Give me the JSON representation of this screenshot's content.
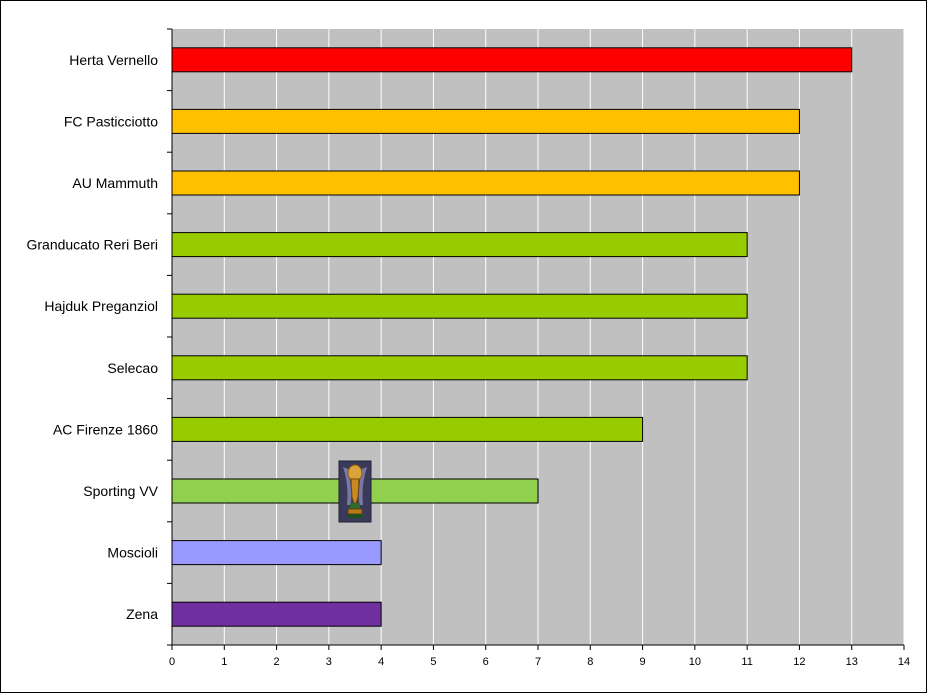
{
  "chart_data": {
    "type": "bar",
    "orientation": "horizontal",
    "categories": [
      "Herta Vernello",
      "FC Pasticciotto",
      "AU Mammuth",
      "Granducato Reri Beri",
      "Hajduk Preganziol",
      "Selecao",
      "AC Firenze 1860",
      "Sporting VV",
      "Moscioli",
      "Zena"
    ],
    "values": [
      13,
      12,
      12,
      11,
      11,
      11,
      9,
      7,
      4,
      4
    ],
    "bar_colors": [
      "#ff0000",
      "#ffc000",
      "#ffc000",
      "#99cc00",
      "#99cc00",
      "#99cc00",
      "#99cc00",
      "#92d050",
      "#9999ff",
      "#7030a0"
    ],
    "xlim": [
      0,
      14
    ],
    "x_ticks": [
      0,
      1,
      2,
      3,
      4,
      5,
      6,
      7,
      8,
      9,
      10,
      11,
      12,
      13,
      14
    ],
    "title": "",
    "xlabel": "",
    "ylabel": "",
    "grid": "vertical",
    "plot_background": "#c0c0c0",
    "gridline_color": "#ffffff",
    "legend": "none",
    "annotation_icon": "trophy-icon",
    "annotation_icon_value": 3.5,
    "annotation_icon_category": "Sporting VV"
  }
}
